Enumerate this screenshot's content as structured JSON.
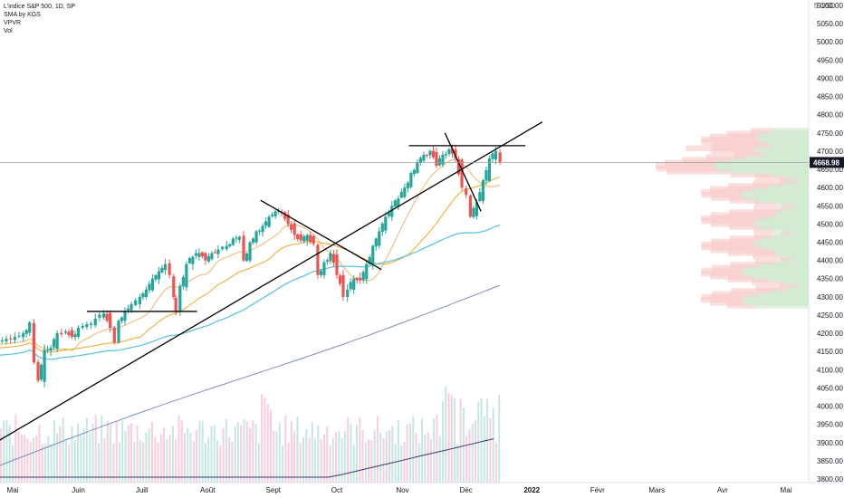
{
  "legend": {
    "line1": "L'indice S&P 500, 1D, SP",
    "line2": "SMA by KGS",
    "line3": "VPVR",
    "line4": "Vol"
  },
  "axis": {
    "currency_label": "5 USD"
  },
  "chart_data": {
    "type": "candlestick",
    "ylim": [
      3790,
      5110
    ],
    "y_ticks": [
      3800,
      3850,
      3900,
      3950,
      4000,
      4050,
      4100,
      4150,
      4200,
      4250,
      4300,
      4350,
      4400,
      4450,
      4500,
      4550,
      4600,
      4650,
      4700,
      4750,
      4800,
      4850,
      4900,
      4950,
      5000,
      5050,
      5100
    ],
    "y_tick_labels": [
      "3800.00",
      "3850.00",
      "3900.00",
      "3950.00",
      "4000.00",
      "4050.00",
      "4100.00",
      "4150.00",
      "4200.00",
      "4250.00",
      "4300.00",
      "4350.00",
      "4400.00",
      "4450.00",
      "4500.00",
      "4550.00",
      "4600.00",
      "4650.00",
      "4700.00",
      "4750.00",
      "4800.00",
      "4850.00",
      "4900.00",
      "4950.00",
      "5000.00",
      "5050.00",
      "5100.00"
    ],
    "x_labels": [
      {
        "text": "Mai",
        "day": 0
      },
      {
        "text": "Juin",
        "day": 31
      },
      {
        "text": "Juill",
        "day": 61
      },
      {
        "text": "Août",
        "day": 92
      },
      {
        "text": "Sept",
        "day": 123
      },
      {
        "text": "Oct",
        "day": 153
      },
      {
        "text": "Nov",
        "day": 184
      },
      {
        "text": "Déc",
        "day": 214
      },
      {
        "text": "2022",
        "day": 245,
        "bold": true
      },
      {
        "text": "Févr",
        "day": 276
      },
      {
        "text": "Mars",
        "day": 304
      },
      {
        "text": "Avr",
        "day": 335
      },
      {
        "text": "Mai",
        "day": 365
      }
    ],
    "last_price": 4668.98,
    "last_price_label": "4668.98",
    "colors": {
      "up": "#26a69a",
      "down": "#ef5350",
      "sma_fast": "#f5a623",
      "sma_mid": "#f0b56e",
      "sma_slow": "#4fc3e0",
      "sma_long": "#7a8fc0",
      "trendline": "#000000",
      "price_line": "#9e9e9e",
      "price_label_bg": "#131722"
    },
    "candle_anchors": [
      {
        "day": -7,
        "close": 4180
      },
      {
        "day": -3,
        "close": 4185
      },
      {
        "day": 1,
        "close": 4190
      },
      {
        "day": 5,
        "close": 4200
      },
      {
        "day": 8,
        "close": 4230
      },
      {
        "day": 10,
        "close": 4120
      },
      {
        "day": 12,
        "close": 4070
      },
      {
        "day": 15,
        "close": 4155
      },
      {
        "day": 18,
        "close": 4160
      },
      {
        "day": 21,
        "close": 4200
      },
      {
        "day": 25,
        "close": 4205
      },
      {
        "day": 28,
        "close": 4190
      },
      {
        "day": 31,
        "close": 4215
      },
      {
        "day": 35,
        "close": 4225
      },
      {
        "day": 39,
        "close": 4240
      },
      {
        "day": 43,
        "close": 4255
      },
      {
        "day": 46,
        "close": 4215
      },
      {
        "day": 48,
        "close": 4175
      },
      {
        "day": 50,
        "close": 4235
      },
      {
        "day": 53,
        "close": 4260
      },
      {
        "day": 56,
        "close": 4280
      },
      {
        "day": 60,
        "close": 4300
      },
      {
        "day": 63,
        "close": 4320
      },
      {
        "day": 66,
        "close": 4350
      },
      {
        "day": 69,
        "close": 4370
      },
      {
        "day": 72,
        "close": 4390
      },
      {
        "day": 74,
        "close": 4360
      },
      {
        "day": 76,
        "close": 4300
      },
      {
        "day": 77,
        "close": 4260
      },
      {
        "day": 79,
        "close": 4330
      },
      {
        "day": 82,
        "close": 4390
      },
      {
        "day": 85,
        "close": 4410
      },
      {
        "day": 88,
        "close": 4420
      },
      {
        "day": 91,
        "close": 4400
      },
      {
        "day": 94,
        "close": 4420
      },
      {
        "day": 97,
        "close": 4430
      },
      {
        "day": 101,
        "close": 4440
      },
      {
        "day": 104,
        "close": 4460
      },
      {
        "day": 107,
        "close": 4465
      },
      {
        "day": 109,
        "close": 4400
      },
      {
        "day": 112,
        "close": 4450
      },
      {
        "day": 115,
        "close": 4480
      },
      {
        "day": 118,
        "close": 4495
      },
      {
        "day": 121,
        "close": 4520
      },
      {
        "day": 124,
        "close": 4535
      },
      {
        "day": 127,
        "close": 4530
      },
      {
        "day": 130,
        "close": 4500
      },
      {
        "day": 133,
        "close": 4470
      },
      {
        "day": 136,
        "close": 4455
      },
      {
        "day": 139,
        "close": 4470
      },
      {
        "day": 142,
        "close": 4445
      },
      {
        "day": 144,
        "close": 4360
      },
      {
        "day": 147,
        "close": 4395
      },
      {
        "day": 150,
        "close": 4420
      },
      {
        "day": 153,
        "close": 4360
      },
      {
        "day": 156,
        "close": 4300
      },
      {
        "day": 158,
        "close": 4320
      },
      {
        "day": 161,
        "close": 4350
      },
      {
        "day": 164,
        "close": 4345
      },
      {
        "day": 167,
        "close": 4390
      },
      {
        "day": 170,
        "close": 4440
      },
      {
        "day": 173,
        "close": 4480
      },
      {
        "day": 176,
        "close": 4520
      },
      {
        "day": 179,
        "close": 4550
      },
      {
        "day": 182,
        "close": 4570
      },
      {
        "day": 185,
        "close": 4600
      },
      {
        "day": 188,
        "close": 4640
      },
      {
        "day": 191,
        "close": 4670
      },
      {
        "day": 194,
        "close": 4690
      },
      {
        "day": 197,
        "close": 4700
      },
      {
        "day": 200,
        "close": 4660
      },
      {
        "day": 203,
        "close": 4690
      },
      {
        "day": 206,
        "close": 4705
      },
      {
        "day": 209,
        "close": 4680
      },
      {
        "day": 212,
        "close": 4600
      },
      {
        "day": 214,
        "close": 4580
      },
      {
        "day": 216,
        "close": 4520
      },
      {
        "day": 219,
        "close": 4560
      },
      {
        "day": 222,
        "close": 4620
      },
      {
        "day": 225,
        "close": 4680
      },
      {
        "day": 228,
        "close": 4700
      },
      {
        "day": 230,
        "close": 4669
      }
    ]
  }
}
